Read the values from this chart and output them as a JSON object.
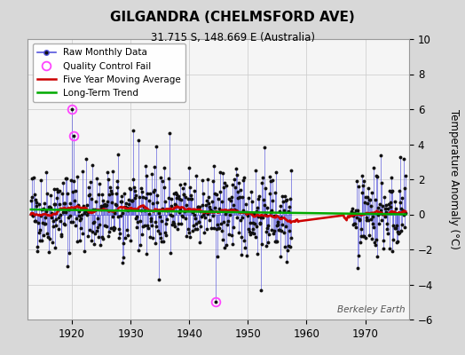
{
  "title": "GILGANDRA (CHELMSFORD AVE)",
  "subtitle": "31.715 S, 148.669 E (Australia)",
  "ylabel": "Temperature Anomaly (°C)",
  "watermark": "Berkeley Earth",
  "year_start": 1913,
  "year_end": 1976,
  "ylim": [
    -6,
    10
  ],
  "yticks": [
    -6,
    -4,
    -2,
    0,
    2,
    4,
    6,
    8,
    10
  ],
  "xticks": [
    1920,
    1930,
    1940,
    1950,
    1960,
    1970
  ],
  "fig_bg_color": "#d8d8d8",
  "plot_bg_color": "#f5f5f5",
  "raw_line_color": "#5555dd",
  "raw_marker_color": "#111111",
  "moving_avg_color": "#cc0000",
  "trend_color": "#00aa00",
  "qc_fail_color": "#ff44ff",
  "legend_loc": "upper left",
  "seed": 42,
  "gap_start": 1957.5,
  "gap_end": 1967.5
}
